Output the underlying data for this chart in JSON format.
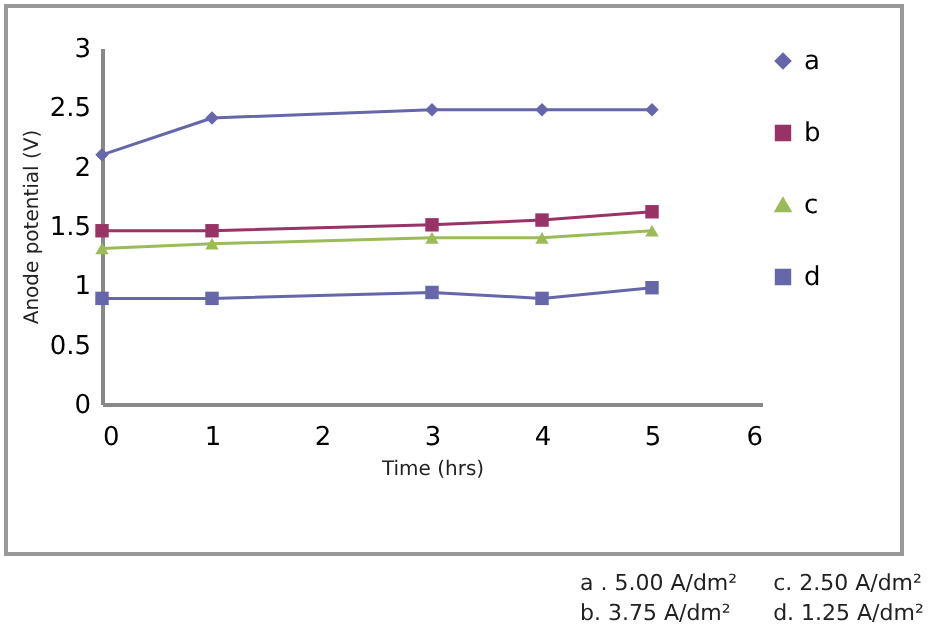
{
  "chart_data": {
    "type": "line",
    "xlabel": "Time (hrs)",
    "ylabel": "Anode potential (V)",
    "x": [
      0,
      1,
      3,
      4,
      5
    ],
    "xlim": [
      0,
      6
    ],
    "xticks": [
      0,
      1,
      2,
      3,
      4,
      5,
      6
    ],
    "ylim": [
      0,
      3
    ],
    "yticks": [
      0,
      0.5,
      1,
      1.5,
      2,
      2.5,
      3
    ],
    "grid": false,
    "legend": "right",
    "series": [
      {
        "name": "a",
        "color": "#6666aa",
        "marker": "diamond",
        "values": [
          2.1,
          2.41,
          2.48,
          2.48,
          2.48
        ]
      },
      {
        "name": "b",
        "color": "#993366",
        "marker": "square",
        "values": [
          1.46,
          1.46,
          1.51,
          1.55,
          1.62
        ]
      },
      {
        "name": "c",
        "color": "#9bbb59",
        "marker": "triangle",
        "values": [
          1.31,
          1.35,
          1.4,
          1.4,
          1.46
        ]
      },
      {
        "name": "d",
        "color": "#6666aa",
        "marker": "square",
        "values": [
          0.89,
          0.89,
          0.94,
          0.89,
          0.98
        ]
      }
    ],
    "annotations": [
      "a . 5.00 A/dm²",
      "c. 2.50 A/dm²",
      "b. 3.75 A/dm²",
      "d. 1.25 A/dm²"
    ]
  }
}
